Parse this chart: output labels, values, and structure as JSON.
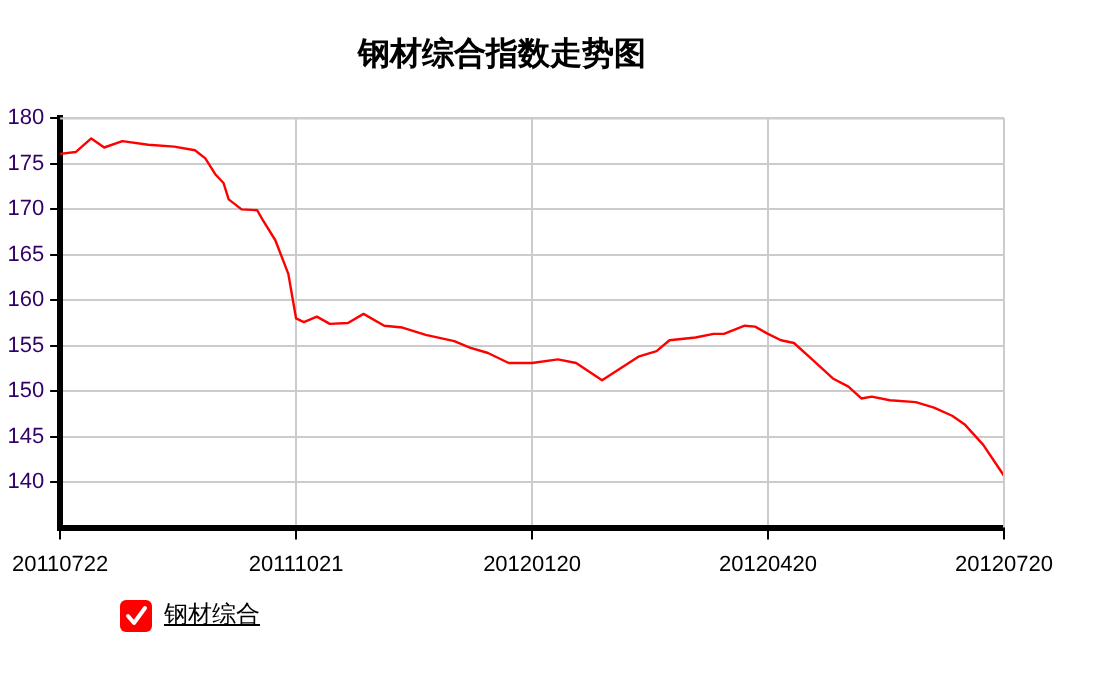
{
  "chart_data": {
    "type": "line",
    "title": "钢材综合指数走势图",
    "x": [
      "2011-07-22",
      "2011-07-28",
      "2011-08-03",
      "2011-08-08",
      "2011-08-15",
      "2011-08-25",
      "2011-09-04",
      "2011-09-12",
      "2011-09-16",
      "2011-09-20",
      "2011-09-23",
      "2011-09-25",
      "2011-09-30",
      "2011-10-06",
      "2011-10-08",
      "2011-10-13",
      "2011-10-18",
      "2011-10-21",
      "2011-10-24",
      "2011-10-29",
      "2011-11-03",
      "2011-11-10",
      "2011-11-16",
      "2011-11-24",
      "2011-12-01",
      "2011-12-10",
      "2011-12-21",
      "2011-12-27",
      "2012-01-03",
      "2012-01-11",
      "2012-01-20",
      "2012-01-30",
      "2012-02-06",
      "2012-02-16",
      "2012-02-23",
      "2012-03-01",
      "2012-03-08",
      "2012-03-13",
      "2012-03-23",
      "2012-03-30",
      "2012-04-03",
      "2012-04-11",
      "2012-04-15",
      "2012-04-20",
      "2012-04-25",
      "2012-04-30",
      "2012-05-07",
      "2012-05-15",
      "2012-05-21",
      "2012-05-26",
      "2012-05-30",
      "2012-06-06",
      "2012-06-16",
      "2012-06-23",
      "2012-06-30",
      "2012-07-05",
      "2012-07-12",
      "2012-07-20"
    ],
    "series": [
      {
        "name": "钢材综合",
        "color": "#ff0000",
        "values": [
          176.1,
          176.3,
          177.8,
          176.8,
          177.5,
          177.1,
          176.9,
          176.5,
          175.6,
          173.8,
          172.9,
          171.1,
          170.0,
          169.9,
          168.9,
          166.6,
          162.9,
          158.0,
          157.6,
          158.2,
          157.4,
          157.5,
          158.5,
          157.2,
          157.0,
          156.2,
          155.5,
          154.8,
          154.2,
          153.1,
          153.1,
          153.5,
          153.1,
          151.2,
          152.5,
          153.8,
          154.4,
          155.6,
          155.9,
          156.3,
          156.3,
          157.2,
          157.1,
          156.3,
          155.6,
          155.3,
          153.5,
          151.4,
          150.5,
          149.2,
          149.4,
          149.0,
          148.8,
          148.2,
          147.3,
          146.3,
          144.1,
          140.7
        ]
      }
    ],
    "xlim": [
      "2011-07-22",
      "2012-07-20"
    ],
    "xticks": [
      {
        "value": "2011-07-22",
        "label": "20110722"
      },
      {
        "value": "2011-10-21",
        "label": "20111021"
      },
      {
        "value": "2012-01-20",
        "label": "20120120"
      },
      {
        "value": "2012-04-20",
        "label": "20120420"
      },
      {
        "value": "2012-07-20",
        "label": "20120720"
      }
    ],
    "ylim": [
      135,
      180
    ],
    "yticks": [
      140,
      145,
      150,
      155,
      160,
      165,
      170,
      175,
      180
    ],
    "grid": true,
    "legend": "bottom left",
    "marker": "none",
    "line_style": "solid"
  }
}
